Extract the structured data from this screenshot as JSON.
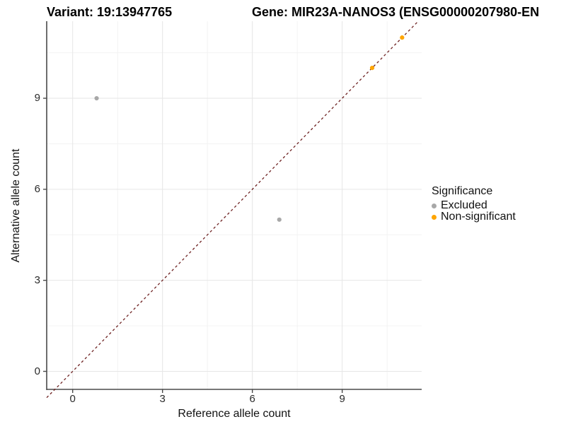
{
  "chart_data": {
    "type": "scatter",
    "title_variant": "Variant: 19:13947765",
    "title_gene": "Gene: MIR23A-NANOS3 (ENSG00000207980-EN",
    "xlabel": "Reference allele count",
    "ylabel": "Alternative allele count",
    "x_ticks": [
      "0",
      "3",
      "6",
      "9"
    ],
    "y_ticks": [
      "0",
      "3",
      "6",
      "9"
    ],
    "x_tick_values": [
      0,
      3,
      6,
      9
    ],
    "y_tick_values": [
      0,
      3,
      6,
      9
    ],
    "x_minor_values": [
      1.5,
      4.5,
      7.5,
      10.5
    ],
    "y_minor_values": [
      1.5,
      4.5,
      7.5,
      10.5
    ],
    "xlim": [
      -0.87,
      11.66
    ],
    "ylim": [
      -0.59,
      11.54
    ],
    "grid": "on",
    "series": [
      {
        "name": "Excluded",
        "color": "#a8a8a8",
        "points": [
          {
            "x": 0.8,
            "y": 9.0
          },
          {
            "x": 6.9,
            "y": 5.0
          }
        ]
      },
      {
        "name": "Non-significant",
        "color": "#FFA500",
        "points": [
          {
            "x": 10.0,
            "y": 10.0
          },
          {
            "x": 11.0,
            "y": 11.0
          }
        ]
      }
    ],
    "reference_line": {
      "type": "identity y = x",
      "style": "dashed",
      "color": "#6e2222"
    },
    "legend": {
      "title": "Significance",
      "position": "right",
      "entries": [
        {
          "label": "Excluded",
          "color": "#a8a8a8"
        },
        {
          "label": "Non-significant",
          "color": "#FFA500"
        }
      ]
    },
    "colors": {
      "background": "#ffffff",
      "grid_major": "#e6e6e6",
      "grid_minor": "#f3f3f3",
      "axis": "#4a4a4a",
      "tick_text": "#2b2b2b"
    }
  }
}
